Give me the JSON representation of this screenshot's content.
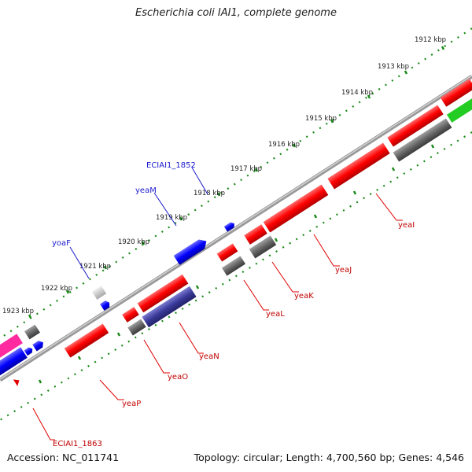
{
  "title": "Escherichia coli IAI1, complete genome",
  "footer": {
    "accession": "Accession: NC_011741",
    "summary": "Topology: circular; Length: 4,700,560 bp; Genes: 4,546"
  },
  "ticks": [
    "1912 kbp",
    "1913 kbp",
    "1914 kbp",
    "1915 kbp",
    "1916 kbp",
    "1917 kbp",
    "1918 kbp",
    "1919 kbp",
    "1920 kbp",
    "1921 kbp",
    "1922 kbp",
    "1923 kbp"
  ],
  "gene_labels_red": [
    "yeaI",
    "yeaJ",
    "yeaK",
    "yeaL",
    "yeaN",
    "yeaO",
    "yeaP",
    "ECIAI1_1863"
  ],
  "gene_labels_blue": [
    "ECIAI1_1852",
    "yeaM",
    "yoaF"
  ],
  "colors": {
    "forward_cds": "#ff0000",
    "reverse_cds": "#0000ff",
    "rna_like": "#666666",
    "pink": "#ff2aa0",
    "green": "#22cc22",
    "navy": "#3a3a9a",
    "tick_dots": "#1a8a1a",
    "backbone": "#808080",
    "label_red": "#c00000",
    "label_blue": "#1a1acc"
  }
}
